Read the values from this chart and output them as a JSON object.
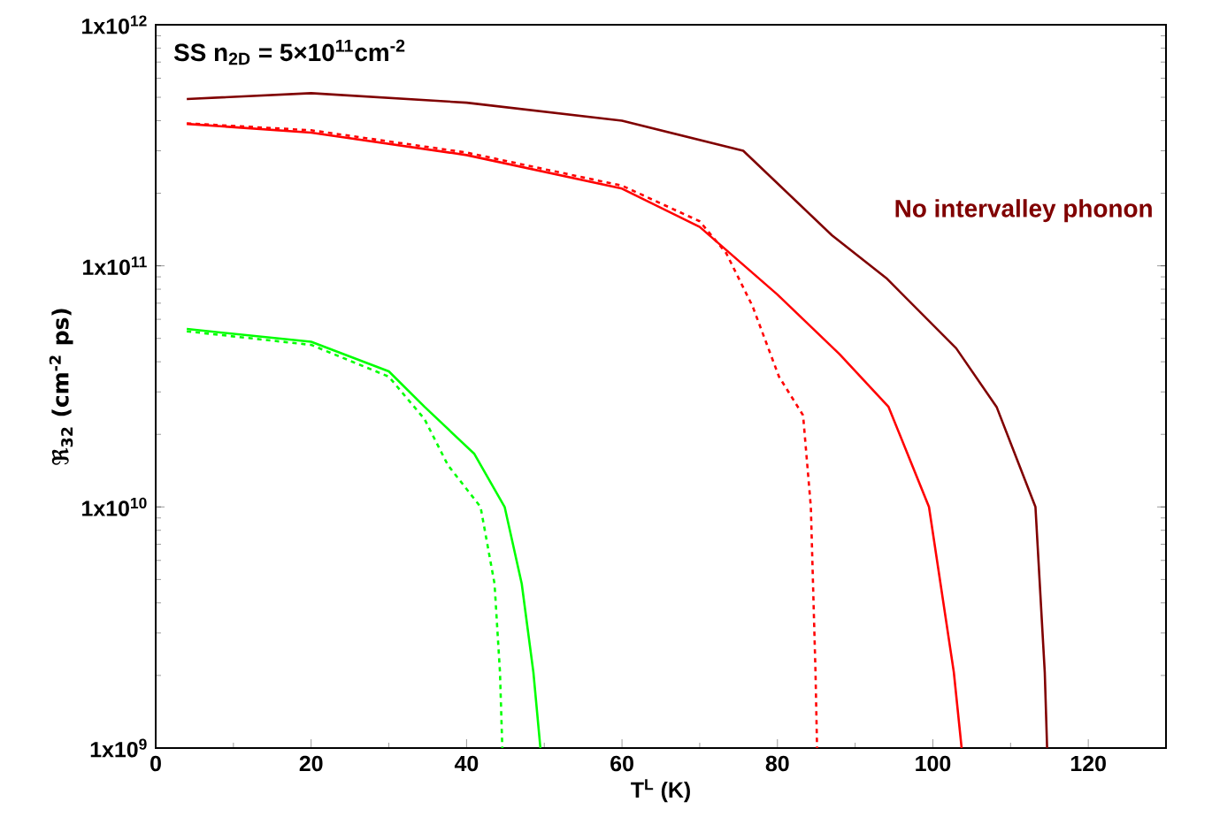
{
  "chart_data": {
    "type": "line",
    "log": true,
    "grid": false,
    "xlabel": "T$^{L}$ (K)",
    "ylabel": "ℜ$_{32}$ (cm$^{-2}$ ps)",
    "annotations": [
      "SS n$_{2D}$ = 5×10$^{11}$cm$^{-2}$"
    ],
    "xlim": [
      0,
      130
    ],
    "ylim": [
      1000000000.0,
      1000000000000.0
    ],
    "xticks": [
      0,
      20,
      40,
      60,
      80,
      100,
      120
    ],
    "yticks": [
      {
        "value": 1000000000.0,
        "label": "1x10$^{9}$"
      },
      {
        "value": 10000000000.0,
        "label": "1x10$^{10}$"
      },
      {
        "value": 100000000000.0,
        "label": "1x10$^{11}$"
      },
      {
        "value": 1000000000000.0,
        "label": "1x10$^{12}$"
      }
    ],
    "series": [
      {
        "name": "No intervalley phonon",
        "color": "#800000",
        "line_style": "solid",
        "x": [
          4,
          20,
          40,
          60,
          75.6,
          87,
          94,
          103,
          108.2,
          113.2,
          114.4,
          114.7
        ],
        "values": [
          492000000000.0,
          520000000000.0,
          475000000000.0,
          400000000000.0,
          300000000000.0,
          134000000000.0,
          89000000000.0,
          45500000000.0,
          26000000000.0,
          10000000000.0,
          2060000000.0,
          1000000000.0
        ]
      },
      {
        "color": "#ff0000",
        "line_style": "solid",
        "x": [
          4,
          20,
          40,
          60,
          70,
          80,
          88,
          94.3,
          99.5,
          102.7,
          103.7
        ],
        "values": [
          388000000000.0,
          357000000000.0,
          288000000000.0,
          209000000000.0,
          145000000000.0,
          76000000000.0,
          43000000000.0,
          26000000000.0,
          10000000000.0,
          2060000000.0,
          1000000000.0
        ]
      },
      {
        "color": "#ff0000",
        "line_style": "dotted",
        "x": [
          4,
          20,
          40,
          60,
          70,
          73.4,
          76.8,
          80.2,
          83.3,
          84.3,
          84.9,
          85.1
        ],
        "values": [
          390000000000.0,
          365000000000.0,
          295000000000.0,
          215000000000.0,
          153000000000.0,
          113000000000.0,
          68000000000.0,
          34700000000.0,
          24000000000.0,
          10000000000.0,
          2060000000.0,
          1000000000.0
        ]
      },
      {
        "color": "#00ff00",
        "line_style": "solid",
        "x": [
          4,
          20,
          30,
          34.6,
          41,
          44.9,
          47.1,
          48.6,
          49.5
        ],
        "values": [
          54700000000.0,
          48400000000.0,
          36500000000.0,
          26000000000.0,
          16600000000.0,
          10000000000.0,
          4800000000.0,
          2060000000.0,
          1000000000.0
        ]
      },
      {
        "color": "#00ff00",
        "line_style": "dotted",
        "x": [
          4,
          20,
          30,
          34.6,
          37.6,
          41.8,
          43.6,
          44.3,
          44.6
        ],
        "values": [
          53500000000.0,
          47000000000.0,
          34700000000.0,
          23100000000.0,
          14900000000.0,
          10000000000.0,
          4800000000.0,
          2060000000.0,
          1000000000.0
        ]
      }
    ]
  }
}
